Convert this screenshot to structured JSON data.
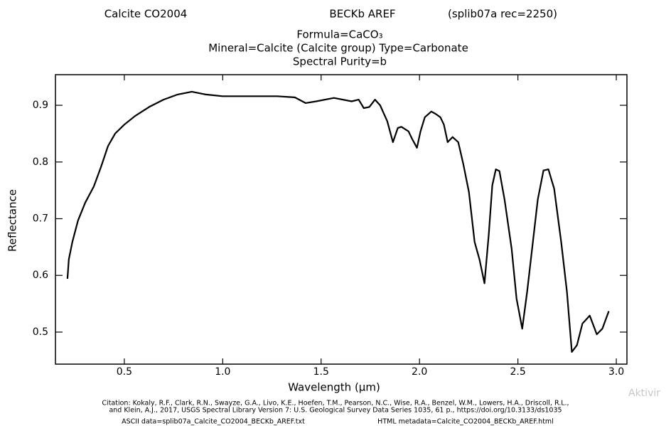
{
  "chart_data": {
    "type": "line",
    "header": [
      "Calcite CO2004",
      "BECKb AREF",
      "(splib07a rec=2250)"
    ],
    "title": [
      "Formula=CaCO₃",
      "Mineral=Calcite (Calcite group)  Type=Carbonate",
      "Spectral Purity=b"
    ],
    "xlabel": "Wavelength (μm)",
    "ylabel": "Reflectance",
    "color": "#000000",
    "x": [
      0.211,
      0.218,
      0.236,
      0.265,
      0.301,
      0.345,
      0.381,
      0.417,
      0.453,
      0.5,
      0.554,
      0.626,
      0.699,
      0.771,
      0.843,
      0.915,
      1.0,
      1.132,
      1.276,
      1.366,
      1.421,
      1.475,
      1.565,
      1.655,
      1.691,
      1.717,
      1.745,
      1.774,
      1.8,
      1.836,
      1.865,
      1.89,
      1.908,
      1.944,
      1.962,
      1.987,
      2.005,
      2.027,
      2.06,
      2.081,
      2.106,
      2.124,
      2.143,
      2.168,
      2.197,
      2.222,
      2.251,
      2.28,
      2.305,
      2.33,
      2.352,
      2.37,
      2.388,
      2.406,
      2.432,
      2.468,
      2.493,
      2.522,
      2.547,
      2.576,
      2.601,
      2.63,
      2.655,
      2.684,
      2.72,
      2.749,
      2.774,
      2.8,
      2.828,
      2.865,
      2.901,
      2.929,
      2.962
    ],
    "values": [
      0.594,
      0.628,
      0.659,
      0.697,
      0.728,
      0.757,
      0.791,
      0.828,
      0.85,
      0.866,
      0.881,
      0.897,
      0.91,
      0.919,
      0.924,
      0.919,
      0.916,
      0.916,
      0.916,
      0.914,
      0.904,
      0.907,
      0.913,
      0.907,
      0.91,
      0.895,
      0.897,
      0.91,
      0.9,
      0.872,
      0.835,
      0.86,
      0.862,
      0.854,
      0.841,
      0.825,
      0.854,
      0.879,
      0.889,
      0.885,
      0.879,
      0.866,
      0.835,
      0.844,
      0.835,
      0.797,
      0.747,
      0.659,
      0.628,
      0.586,
      0.672,
      0.759,
      0.787,
      0.784,
      0.734,
      0.647,
      0.559,
      0.506,
      0.571,
      0.659,
      0.734,
      0.785,
      0.787,
      0.753,
      0.659,
      0.571,
      0.465,
      0.477,
      0.515,
      0.529,
      0.496,
      0.506,
      0.537
    ],
    "xlim": [
      0.15,
      3.054
    ],
    "ylim": [
      0.4435,
      0.954
    ],
    "xticks": [
      0.5,
      {
        "value": 1,
        "label": "1.0"
      },
      1.5,
      {
        "value": 2,
        "label": "2.0"
      },
      2.5,
      {
        "value": 3,
        "label": "3.0"
      }
    ],
    "yticks": [
      0.5,
      0.6,
      0.7,
      0.8,
      0.9
    ],
    "citation": [
      "Citation: Kokaly, R.F., Clark, R.N., Swayze, G.A., Livo, K.E., Hoefen, T.M., Pearson, N.C., Wise, R.A., Benzel, W.M., Lowers, H.A., Driscoll, R.L.,",
      "and Klein, A.J., 2017, USGS Spectral Library Version 7: U.S. Geological Survey Data Series 1035, 61 p., https://doi.org/10.3133/ds1035"
    ],
    "ascii_data": "ASCII data=splib07a_Calcite_CO2004_BECKb_AREF.txt",
    "html_metadata": "HTML metadata=Calcite_CO2004_BECKb_AREF.html",
    "watermark": "Aktivir"
  }
}
